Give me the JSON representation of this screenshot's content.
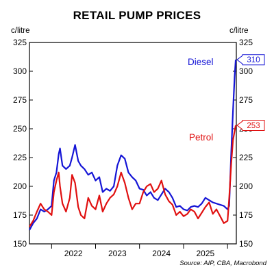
{
  "chart_data": {
    "type": "line",
    "title": "RETAIL PUMP PRICES",
    "ylabel_left": "c/litre",
    "ylabel_right": "c/litre",
    "ylim": [
      150,
      325
    ],
    "yticks": [
      150,
      175,
      200,
      225,
      250,
      275,
      300,
      325
    ],
    "xlim": [
      "2021-07-01",
      "2026-03-15"
    ],
    "xticks": [
      {
        "label": "2022",
        "center": "2022-07-01"
      },
      {
        "label": "2023",
        "center": "2023-07-01"
      },
      {
        "label": "2024",
        "center": "2024-07-01"
      },
      {
        "label": "2025",
        "center": "2025-07-01"
      }
    ],
    "year_dividers": [
      "2022-01-01",
      "2023-01-01",
      "2024-01-01",
      "2025-01-01",
      "2026-01-01"
    ],
    "source": "Source: AIP, CBA, Macrobond",
    "series": [
      {
        "name": "Diesel",
        "color": "#1515d6",
        "end_label": "310",
        "x": [
          "2021-07-01",
          "2021-08-01",
          "2021-09-01",
          "2021-10-01",
          "2021-11-01",
          "2021-12-01",
          "2022-01-01",
          "2022-01-20",
          "2022-02-10",
          "2022-03-01",
          "2022-03-12",
          "2022-04-01",
          "2022-05-01",
          "2022-06-01",
          "2022-06-20",
          "2022-07-15",
          "2022-08-10",
          "2022-09-01",
          "2022-10-01",
          "2022-11-01",
          "2022-12-01",
          "2023-01-01",
          "2023-02-01",
          "2023-03-01",
          "2023-04-01",
          "2023-05-01",
          "2023-06-01",
          "2023-07-01",
          "2023-08-01",
          "2023-09-01",
          "2023-10-01",
          "2023-11-01",
          "2023-12-01",
          "2024-01-01",
          "2024-02-01",
          "2024-03-01",
          "2024-04-01",
          "2024-05-01",
          "2024-06-01",
          "2024-07-01",
          "2024-08-01",
          "2024-09-01",
          "2024-10-01",
          "2024-11-01",
          "2024-12-01",
          "2025-01-01",
          "2025-02-01",
          "2025-03-01",
          "2025-04-01",
          "2025-05-01",
          "2025-06-01",
          "2025-07-01",
          "2025-08-01",
          "2025-09-01",
          "2025-10-01",
          "2025-11-01",
          "2025-12-01",
          "2026-01-01",
          "2026-01-15",
          "2026-02-01",
          "2026-02-15",
          "2026-03-01",
          "2026-03-10"
        ],
        "y": [
          162,
          168,
          172,
          180,
          178,
          180,
          183,
          205,
          212,
          228,
          233,
          218,
          215,
          218,
          225,
          236,
          222,
          218,
          215,
          210,
          212,
          205,
          208,
          195,
          198,
          196,
          200,
          218,
          227,
          224,
          212,
          208,
          205,
          198,
          197,
          192,
          195,
          190,
          188,
          193,
          198,
          195,
          190,
          182,
          183,
          180,
          179,
          182,
          183,
          182,
          185,
          190,
          188,
          186,
          185,
          184,
          183,
          180,
          183,
          230,
          265,
          295,
          310
        ]
      },
      {
        "name": "Petrol",
        "color": "#e01010",
        "end_label": "253",
        "x": [
          "2021-07-01",
          "2021-08-01",
          "2021-09-01",
          "2021-10-01",
          "2021-11-01",
          "2021-12-01",
          "2022-01-01",
          "2022-01-20",
          "2022-02-10",
          "2022-03-01",
          "2022-03-12",
          "2022-04-01",
          "2022-05-01",
          "2022-06-01",
          "2022-06-20",
          "2022-07-15",
          "2022-08-10",
          "2022-09-01",
          "2022-10-01",
          "2022-11-01",
          "2022-12-01",
          "2023-01-01",
          "2023-02-01",
          "2023-03-01",
          "2023-04-01",
          "2023-05-01",
          "2023-06-01",
          "2023-07-01",
          "2023-08-01",
          "2023-09-01",
          "2023-10-01",
          "2023-11-01",
          "2023-12-01",
          "2024-01-01",
          "2024-02-01",
          "2024-03-01",
          "2024-04-01",
          "2024-05-01",
          "2024-06-01",
          "2024-07-01",
          "2024-08-01",
          "2024-09-01",
          "2024-10-01",
          "2024-11-01",
          "2024-12-01",
          "2025-01-01",
          "2025-02-01",
          "2025-03-01",
          "2025-04-01",
          "2025-05-01",
          "2025-06-01",
          "2025-07-01",
          "2025-08-01",
          "2025-09-01",
          "2025-10-01",
          "2025-11-01",
          "2025-12-01",
          "2026-01-01",
          "2026-01-15",
          "2026-02-01",
          "2026-02-15",
          "2026-03-01",
          "2026-03-10"
        ],
        "y": [
          165,
          170,
          178,
          185,
          180,
          178,
          175,
          195,
          205,
          212,
          200,
          185,
          178,
          190,
          210,
          203,
          182,
          175,
          172,
          190,
          183,
          180,
          192,
          178,
          185,
          190,
          193,
          200,
          212,
          203,
          190,
          180,
          185,
          185,
          195,
          200,
          202,
          195,
          198,
          205,
          193,
          187,
          184,
          175,
          178,
          174,
          176,
          180,
          178,
          172,
          177,
          182,
          186,
          176,
          180,
          174,
          168,
          170,
          190,
          220,
          240,
          248,
          253
        ]
      }
    ]
  }
}
